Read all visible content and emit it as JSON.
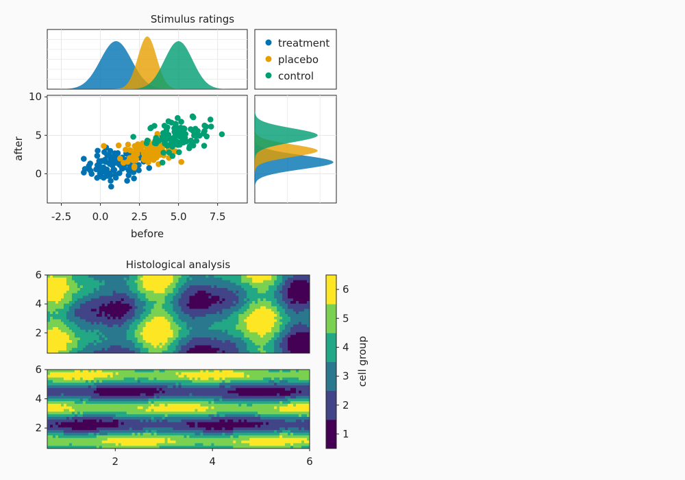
{
  "colors": {
    "treatment": "#0072b2",
    "placebo": "#e69f00",
    "control": "#009e73",
    "viridis6": [
      "#440154",
      "#414487",
      "#2a788e",
      "#22a884",
      "#7ad151",
      "#fde725"
    ]
  },
  "chart_data": [
    {
      "type": "scatter",
      "title": "Stimulus ratings",
      "xlabel": "before",
      "ylabel": "after",
      "xlim": [
        -3.4,
        9.4
      ],
      "ylim": [
        -3.8,
        10.2
      ],
      "xticks": [
        "-2.5",
        "0.0",
        "2.5",
        "5.0",
        "7.5"
      ],
      "yticks": [
        "0",
        "5",
        "10"
      ],
      "grid": true,
      "legend": {
        "placement": "top-right panel",
        "entries": [
          "treatment",
          "placebo",
          "control"
        ]
      },
      "series": [
        {
          "name": "treatment",
          "n": 100,
          "mean_x": 1.0,
          "sd_x": 1.0,
          "mean_y": 1.0,
          "sd_y": 1.0,
          "marginal_x": {
            "peak": 1.0,
            "sd": 1.0
          },
          "marginal_y": {
            "peak": 1.5,
            "sd": 0.9
          }
        },
        {
          "name": "placebo",
          "n": 100,
          "mean_x": 3.0,
          "sd_x": 0.8,
          "mean_y": 3.0,
          "sd_y": 0.9,
          "marginal_x": {
            "peak": 3.0,
            "sd": 0.6
          },
          "marginal_y": {
            "peak": 3.0,
            "sd": 0.8
          }
        },
        {
          "name": "control",
          "n": 100,
          "mean_x": 5.0,
          "sd_x": 1.0,
          "mean_y": 5.0,
          "sd_y": 1.0,
          "marginal_x": {
            "peak": 5.0,
            "sd": 0.9
          },
          "marginal_y": {
            "peak": 5.0,
            "sd": 0.9
          }
        }
      ]
    },
    {
      "type": "heatmap",
      "subtype": "filled contour",
      "title": "Histological analysis",
      "panels": [
        {
          "name": "top",
          "xlim": [
            0.6,
            6.0
          ],
          "ylim": [
            0.6,
            6.0
          ],
          "yticks": [
            "2",
            "4",
            "6"
          ],
          "pattern": "vertical bands"
        },
        {
          "name": "bottom",
          "xlim": [
            0.6,
            6.0
          ],
          "ylim": [
            0.6,
            6.0
          ],
          "yticks": [
            "2",
            "4",
            "6"
          ],
          "xticks": [
            "2",
            "4",
            "6"
          ],
          "pattern": "horizontal bands"
        }
      ],
      "colorbar": {
        "label": "cell group",
        "levels": [
          "1",
          "2",
          "3",
          "4",
          "5",
          "6"
        ],
        "colormap": "viridis"
      }
    }
  ]
}
